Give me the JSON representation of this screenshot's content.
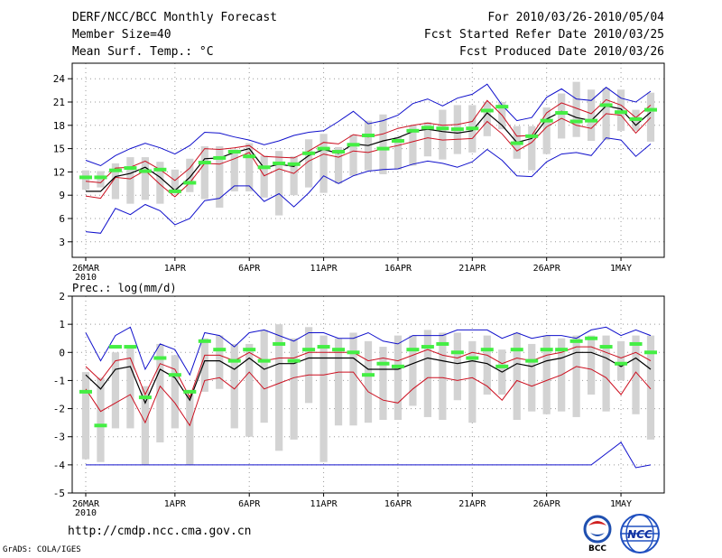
{
  "header": {
    "left": [
      "DERF/NCC/BCC Monthly Forecast",
      "Member Size=40",
      "Mean Surf. Temp.: °C"
    ],
    "right": [
      "For 2010/03/26-2010/05/04",
      "Fcst Started Refer Date 2010/03/25",
      "Fcst Produced Date 2010/03/26"
    ]
  },
  "footer": {
    "url": "http://cmdp.ncc.cma.gov.cn",
    "grads": "GrADS: COLA/IGES"
  },
  "logos": {
    "bcc": "BCC",
    "ncc": "NCC"
  },
  "colors": {
    "envelope": "#1010cc",
    "spread": "#cc1020",
    "mean": "#000000",
    "obs": "#44ee44",
    "box": "#d3d3d3"
  },
  "chart_data": [
    {
      "type": "line",
      "title": "Mean Surf. Temp.: °C",
      "x_tick_labels": [
        "26MAR",
        "1APR",
        "6APR",
        "11APR",
        "16APR",
        "21APR",
        "26APR",
        "1MAY"
      ],
      "x_tick_day_index": [
        0,
        6,
        11,
        16,
        21,
        26,
        31,
        36
      ],
      "year_label": "2010",
      "ylim": [
        1,
        26
      ],
      "yticks": [
        3,
        6,
        9,
        12,
        15,
        18,
        21,
        24
      ],
      "grid": true,
      "series": [
        {
          "name": "max",
          "values": [
            4.3,
            4.1,
            7.3,
            6.5,
            7.8,
            7.0,
            5.2,
            6.0,
            8.3,
            8.6,
            10.2,
            10.2,
            8.2,
            9.2,
            7.5,
            9.3,
            11.5,
            10.5,
            11.5,
            12.1,
            12.3,
            12.4,
            13.0,
            13.4,
            13.1,
            12.6,
            13.3,
            14.9,
            13.5,
            11.5,
            11.4,
            13.3,
            14.3,
            14.5,
            14.1,
            16.4,
            16.1,
            14.0,
            15.6
          ]
        },
        {
          "name": "upper",
          "values": [
            8.9,
            8.6,
            11.3,
            11.1,
            12.2,
            10.4,
            8.8,
            10.6,
            13.1,
            13.0,
            13.7,
            14.5,
            11.5,
            12.4,
            11.8,
            13.4,
            14.3,
            13.9,
            14.7,
            14.5,
            15.0,
            15.4,
            15.9,
            16.4,
            16.1,
            16.2,
            16.3,
            18.5,
            16.9,
            14.7,
            15.8,
            17.8,
            18.9,
            18.0,
            17.6,
            19.5,
            19.3,
            17.0,
            19.0
          ]
        },
        {
          "name": "mean",
          "values": [
            9.5,
            9.5,
            11.4,
            11.8,
            12.6,
            11.3,
            9.6,
            11.3,
            13.7,
            13.8,
            14.5,
            15.0,
            12.5,
            13.0,
            12.7,
            14.1,
            14.9,
            14.4,
            15.6,
            15.4,
            16.0,
            16.4,
            17.2,
            17.5,
            17.2,
            17.0,
            17.3,
            19.6,
            18.0,
            15.8,
            16.3,
            18.8,
            19.8,
            19.0,
            18.6,
            20.5,
            20.1,
            18.0,
            19.7
          ]
        },
        {
          "name": "lower",
          "values": [
            10.8,
            10.6,
            12.5,
            12.6,
            13.4,
            12.3,
            10.9,
            12.5,
            15.0,
            14.9,
            15.1,
            15.4,
            14.0,
            13.9,
            13.8,
            14.7,
            15.8,
            15.6,
            16.8,
            16.5,
            16.9,
            17.6,
            18.0,
            18.3,
            18.0,
            18.1,
            18.5,
            21.2,
            19.3,
            16.6,
            16.7,
            19.6,
            20.9,
            20.2,
            19.5,
            21.3,
            20.6,
            19.0,
            20.6
          ]
        },
        {
          "name": "min",
          "values": [
            13.5,
            12.8,
            14.1,
            15.0,
            15.7,
            15.1,
            14.3,
            15.4,
            17.1,
            17.0,
            16.5,
            16.1,
            15.5,
            16.0,
            16.7,
            17.1,
            17.3,
            18.5,
            19.8,
            18.2,
            18.6,
            19.3,
            20.8,
            21.4,
            20.5,
            21.5,
            22.0,
            23.3,
            20.6,
            18.6,
            19.0,
            21.6,
            22.7,
            21.4,
            21.2,
            22.9,
            21.5,
            21.0,
            22.4
          ]
        },
        {
          "name": "box_low",
          "values": [
            9.7,
            10.0,
            8.5,
            7.9,
            8.4,
            7.9,
            9.2,
            9.4,
            8.5,
            7.4,
            9.5,
            9.5,
            8.7,
            6.4,
            9.0,
            10.0,
            9.3,
            10.5,
            11.5,
            12.2,
            11.7,
            12.3,
            12.8,
            14.0,
            13.6,
            14.3,
            14.5,
            16.6,
            17.5,
            13.7,
            12.2,
            14.3,
            16.3,
            16.5,
            16.0,
            16.1,
            17.3,
            17.3,
            15.9
          ]
        },
        {
          "name": "box_high",
          "values": [
            12.2,
            12.1,
            13.1,
            13.9,
            13.9,
            13.3,
            12.3,
            13.7,
            15.3,
            15.3,
            14.9,
            15.7,
            14.1,
            14.7,
            14.0,
            16.2,
            16.9,
            15.2,
            16.8,
            18.6,
            19.4,
            16.5,
            18.0,
            18.4,
            20.0,
            20.6,
            20.6,
            21.0,
            21.0,
            17.9,
            17.9,
            20.3,
            22.1,
            23.6,
            22.6,
            22.8,
            22.6,
            20.0,
            22.2
          ]
        },
        {
          "name": "obs",
          "values": [
            11.3,
            11.3,
            12.2,
            12.5,
            12.1,
            12.3,
            9.5,
            10.6,
            13.2,
            13.8,
            14.6,
            14.0,
            12.6,
            13.1,
            13.0,
            14.4,
            15.0,
            14.6,
            15.5,
            16.7,
            15.0,
            16.0,
            17.3,
            17.7,
            17.6,
            17.5,
            17.6,
            19.9,
            20.4,
            15.7,
            16.6,
            18.6,
            19.6,
            18.5,
            18.6,
            20.6,
            19.7,
            18.8,
            20.0
          ]
        }
      ]
    },
    {
      "type": "line",
      "title": "Prec.: log(mm/d)",
      "x_tick_labels": [
        "26MAR",
        "1APR",
        "6APR",
        "11APR",
        "16APR",
        "21APR",
        "26APR",
        "1MAY"
      ],
      "x_tick_day_index": [
        0,
        6,
        11,
        16,
        21,
        26,
        31,
        36
      ],
      "year_label": "2010",
      "ylim": [
        -5,
        2
      ],
      "yticks": [
        -5,
        -4,
        -3,
        -2,
        -1,
        0,
        1,
        2
      ],
      "grid": true,
      "series": [
        {
          "name": "max",
          "values": [
            0.7,
            -0.3,
            0.6,
            0.9,
            -0.6,
            0.3,
            0.1,
            -0.8,
            0.7,
            0.6,
            0.2,
            0.7,
            0.8,
            0.6,
            0.4,
            0.7,
            0.7,
            0.5,
            0.5,
            0.7,
            0.4,
            0.3,
            0.6,
            0.6,
            0.6,
            0.8,
            0.8,
            0.8,
            0.5,
            0.7,
            0.5,
            0.6,
            0.6,
            0.5,
            0.8,
            0.9,
            0.6,
            0.8,
            0.6
          ]
        },
        {
          "name": "upper",
          "values": [
            -0.5,
            -1.0,
            -0.3,
            -0.2,
            -1.5,
            -0.4,
            -0.6,
            -1.6,
            -0.1,
            -0.1,
            -0.3,
            0.0,
            -0.3,
            -0.2,
            -0.2,
            0.0,
            0.0,
            0.0,
            0.0,
            -0.3,
            -0.2,
            -0.3,
            -0.1,
            0.1,
            -0.1,
            -0.2,
            0.0,
            -0.1,
            -0.4,
            -0.2,
            -0.3,
            -0.1,
            0.0,
            0.2,
            0.2,
            0.0,
            -0.2,
            0.0,
            -0.3
          ]
        },
        {
          "name": "mean",
          "values": [
            -0.8,
            -1.3,
            -0.6,
            -0.5,
            -1.8,
            -0.6,
            -0.9,
            -1.7,
            -0.3,
            -0.3,
            -0.6,
            -0.2,
            -0.6,
            -0.4,
            -0.4,
            -0.2,
            -0.2,
            -0.2,
            -0.2,
            -0.6,
            -0.6,
            -0.6,
            -0.4,
            -0.2,
            -0.3,
            -0.4,
            -0.3,
            -0.4,
            -0.7,
            -0.4,
            -0.5,
            -0.3,
            -0.2,
            0.0,
            0.0,
            -0.2,
            -0.5,
            -0.2,
            -0.6
          ]
        },
        {
          "name": "lower",
          "values": [
            -1.3,
            -2.1,
            -1.8,
            -1.5,
            -2.5,
            -1.2,
            -1.8,
            -2.6,
            -1.0,
            -0.9,
            -1.3,
            -0.7,
            -1.3,
            -1.1,
            -0.9,
            -0.8,
            -0.8,
            -0.7,
            -0.7,
            -1.4,
            -1.7,
            -1.8,
            -1.3,
            -0.9,
            -0.9,
            -1.0,
            -0.9,
            -1.2,
            -1.7,
            -1.0,
            -1.2,
            -1.0,
            -0.8,
            -0.5,
            -0.6,
            -0.9,
            -1.5,
            -0.7,
            -1.3
          ]
        },
        {
          "name": "min",
          "values": [
            -4.0,
            -4.0,
            -4.0,
            -4.0,
            -4.0,
            -4.0,
            -4.0,
            -4.0,
            -4.0,
            -4.0,
            -4.0,
            -4.0,
            -4.0,
            -4.0,
            -4.0,
            -4.0,
            -4.0,
            -4.0,
            -4.0,
            -4.0,
            -4.0,
            -4.0,
            -4.0,
            -4.0,
            -4.0,
            -4.0,
            -4.0,
            -4.0,
            -4.0,
            -4.0,
            -4.0,
            -4.0,
            -4.0,
            -4.0,
            -4.0,
            -3.6,
            -3.2,
            -4.1,
            -4.0
          ]
        },
        {
          "name": "box_low",
          "values": [
            -3.8,
            -3.9,
            -2.7,
            -2.7,
            -4.0,
            -3.2,
            -2.7,
            -4.0,
            -1.4,
            -1.3,
            -2.7,
            -3.0,
            -2.5,
            -3.5,
            -3.1,
            -1.8,
            -3.9,
            -2.6,
            -2.6,
            -2.5,
            -2.4,
            -2.4,
            -1.9,
            -2.3,
            -2.4,
            -1.7,
            -2.5,
            -1.5,
            -1.5,
            -2.4,
            -2.1,
            -2.2,
            -2.1,
            -2.3,
            -1.5,
            -2.1,
            -1.0,
            -2.2,
            -3.1
          ]
        },
        {
          "name": "box_high",
          "values": [
            -0.7,
            -0.9,
            0.0,
            0.2,
            -1.2,
            0.3,
            -0.1,
            -1.5,
            0.5,
            0.6,
            0.3,
            0.3,
            0.8,
            1.0,
            0.5,
            0.9,
            0.6,
            0.5,
            0.7,
            0.4,
            0.2,
            0.6,
            0.6,
            0.8,
            0.7,
            0.7,
            0.4,
            0.6,
            0.1,
            0.7,
            0.3,
            0.6,
            0.5,
            0.6,
            0.6,
            0.6,
            0.4,
            0.6,
            0.6
          ]
        },
        {
          "name": "obs",
          "values": [
            -1.4,
            -2.6,
            0.2,
            0.2,
            -1.6,
            -0.2,
            -0.8,
            -1.4,
            0.4,
            0.1,
            -0.3,
            0.1,
            -0.3,
            0.3,
            -0.3,
            0.1,
            0.2,
            0.1,
            0.0,
            -0.8,
            -0.4,
            -0.5,
            0.1,
            0.2,
            0.3,
            0.0,
            -0.2,
            0.1,
            -0.5,
            0.1,
            -0.3,
            0.1,
            0.1,
            0.4,
            0.5,
            0.2,
            -0.4,
            0.3,
            0.0
          ]
        }
      ]
    }
  ]
}
